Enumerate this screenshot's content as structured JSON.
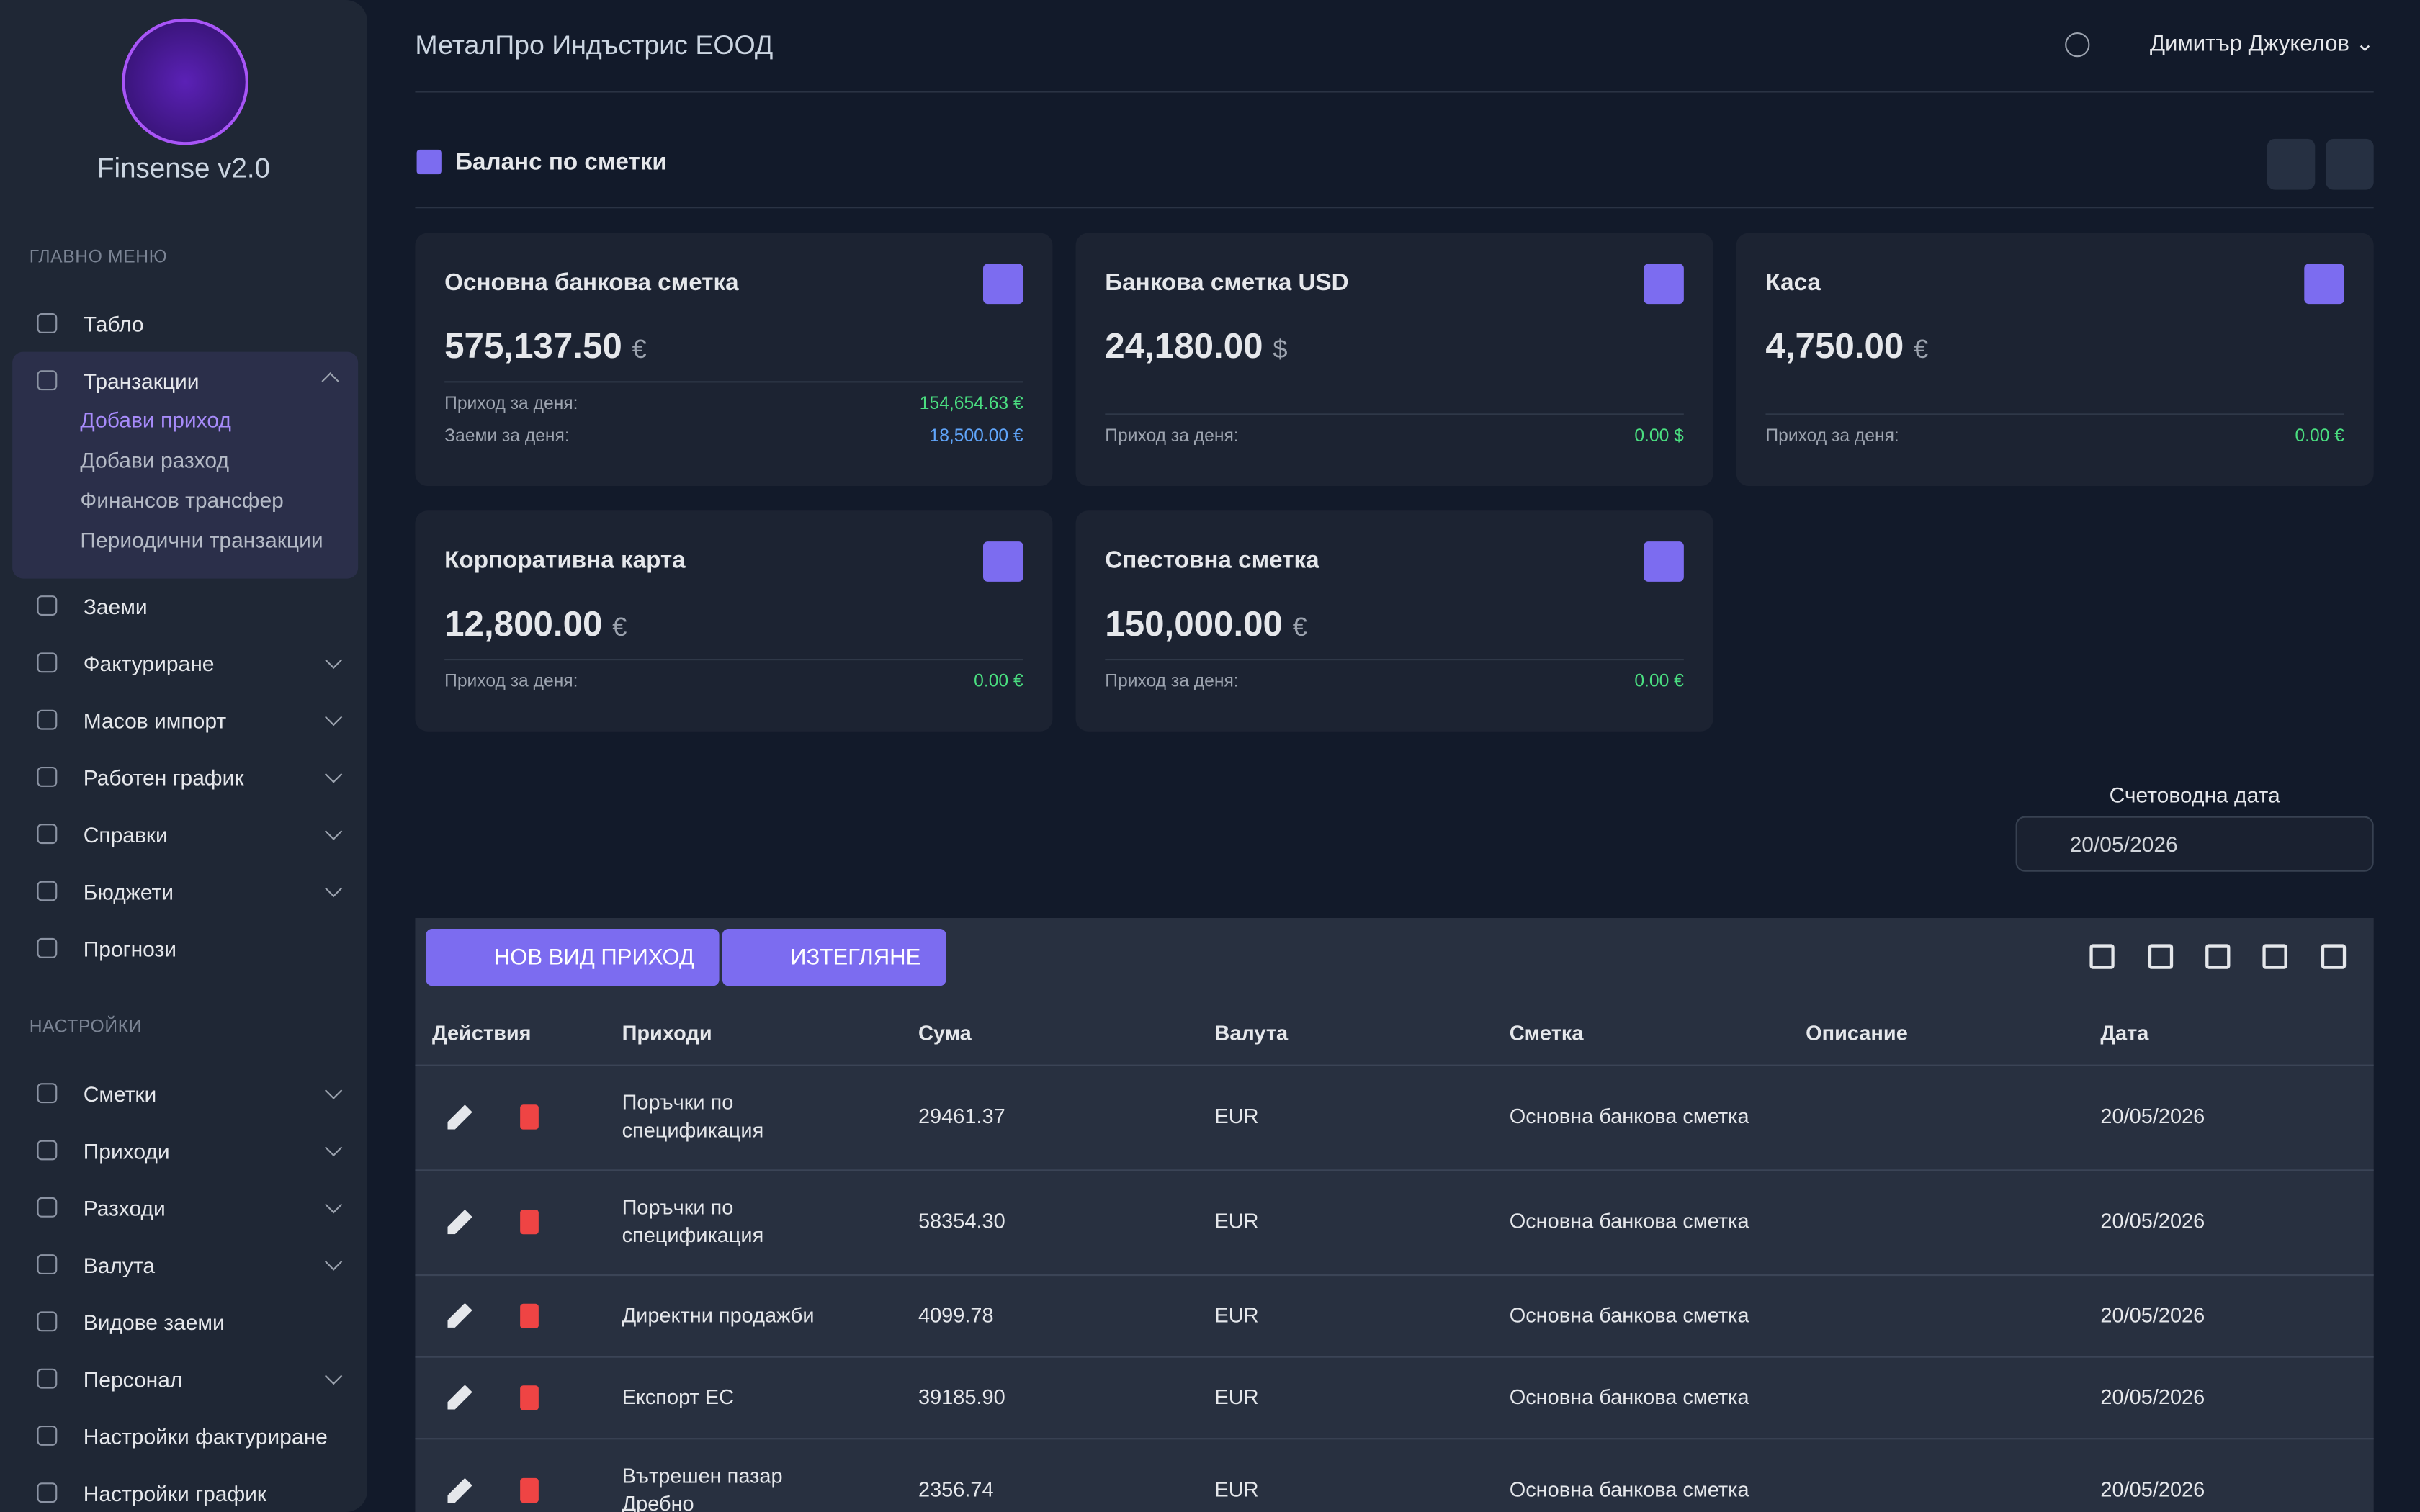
{
  "sidebar": {
    "brand": "Finsense v2.0",
    "main_label": "ГЛАВНО МЕНЮ",
    "main_items": [
      {
        "label": "Табло"
      },
      {
        "label": "Транзакции",
        "active": true,
        "children": [
          "Добави приход",
          "Добави разход",
          "Финансов трансфер",
          "Периодични транзакции"
        ]
      },
      {
        "label": "Заеми"
      },
      {
        "label": "Фактуриране",
        "expandable": true
      },
      {
        "label": "Масов импорт",
        "expandable": true
      },
      {
        "label": "Работен график",
        "expandable": true
      },
      {
        "label": "Справки",
        "expandable": true
      },
      {
        "label": "Бюджети",
        "expandable": true
      },
      {
        "label": "Прогнози"
      }
    ],
    "settings_label": "НАСТРОЙКИ",
    "settings_items": [
      {
        "label": "Сметки",
        "expandable": true
      },
      {
        "label": "Приходи",
        "expandable": true
      },
      {
        "label": "Разходи",
        "expandable": true
      },
      {
        "label": "Валута",
        "expandable": true
      },
      {
        "label": "Видове заеми"
      },
      {
        "label": "Персонал",
        "expandable": true
      },
      {
        "label": "Настройки фактуриране"
      },
      {
        "label": "Настройки график"
      }
    ]
  },
  "header": {
    "company": "МеталПро Индъстрис ЕООД",
    "user": "Димитър Джукелов"
  },
  "balances": {
    "title": "Баланс по сметки",
    "cards": [
      {
        "name": "Основна банкова сметка",
        "amount": "575,137.50",
        "currency": "€",
        "rows": [
          {
            "label": "Приход за деня:",
            "value": "154,654.63 €",
            "color": "#4ade80"
          },
          {
            "label": "Заеми за деня:",
            "value": "18,500.00 €",
            "color": "#60a5fa"
          }
        ]
      },
      {
        "name": "Банкова сметка USD",
        "amount": "24,180.00",
        "currency": "$",
        "rows": [
          {
            "label": "Приход за деня:",
            "value": "0.00 $",
            "color": "#4ade80"
          }
        ]
      },
      {
        "name": "Каса",
        "amount": "4,750.00",
        "currency": "€",
        "rows": [
          {
            "label": "Приход за деня:",
            "value": "0.00 €",
            "color": "#4ade80"
          }
        ]
      },
      {
        "name": "Корпоративна карта",
        "amount": "12,800.00",
        "currency": "€",
        "rows": [
          {
            "label": "Приход за деня:",
            "value": "0.00 €",
            "color": "#4ade80"
          }
        ]
      },
      {
        "name": "Спестовна сметка",
        "amount": "150,000.00",
        "currency": "€",
        "rows": [
          {
            "label": "Приход за деня:",
            "value": "0.00 €",
            "color": "#4ade80"
          }
        ]
      }
    ]
  },
  "accounting_date": {
    "label": "Счетоводна дата",
    "value": "20/05/2026"
  },
  "table": {
    "buttons": [
      "НОВ ВИД ПРИХОД",
      "ИЗТЕГЛЯНЕ"
    ],
    "columns": [
      "Действия",
      "Приходи",
      "Сума",
      "Валута",
      "Сметка",
      "Описание",
      "Дата"
    ],
    "rows": [
      {
        "income": "Поръчки по спецификация",
        "amount": "29461.37",
        "currency": "EUR",
        "account": "Основна банкова сметка",
        "date": "20/05/2026"
      },
      {
        "income": "Поръчки по спецификация",
        "amount": "58354.30",
        "currency": "EUR",
        "account": "Основна банкова сметка",
        "date": "20/05/2026"
      },
      {
        "income": "Директни продажби",
        "amount": "4099.78",
        "currency": "EUR",
        "account": "Основна банкова сметка",
        "date": "20/05/2026"
      },
      {
        "income": "Експорт ЕС",
        "amount": "39185.90",
        "currency": "EUR",
        "account": "Основна банкова сметка",
        "date": "20/05/2026"
      },
      {
        "income": "Вътрешен пазар Дребно",
        "amount": "2356.74",
        "currency": "EUR",
        "account": "Основна банкова сметка",
        "date": "20/05/2026"
      }
    ]
  }
}
